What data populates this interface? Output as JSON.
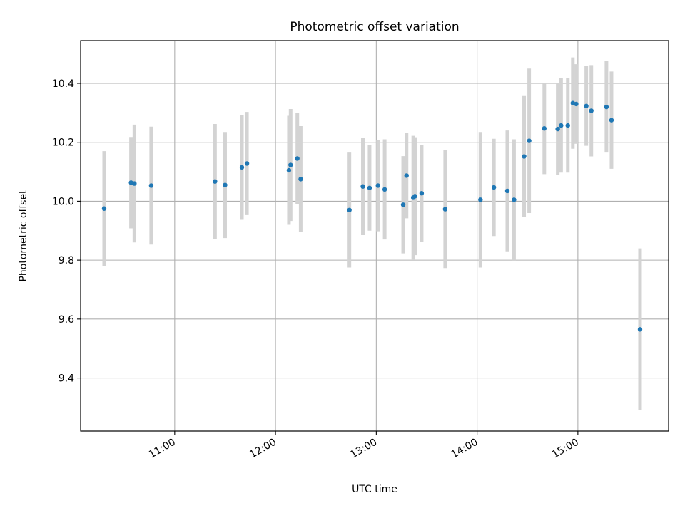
{
  "chart_data": {
    "type": "scatter",
    "title": "Photometric offset variation",
    "xlabel": "UTC time",
    "ylabel": "Photometric offset",
    "x_ticks": [
      "11:00",
      "12:00",
      "13:00",
      "14:00",
      "15:00"
    ],
    "y_ticks": [
      "9.4",
      "9.6",
      "9.8",
      "10.0",
      "10.2",
      "10.4"
    ],
    "xlim": [
      "10:04",
      "15:54"
    ],
    "ylim": [
      9.22,
      10.545
    ],
    "grid": true,
    "colors": {
      "point": "#1f77b4",
      "errorbar": "#d3d3d3"
    },
    "series": [
      {
        "points": [
          {
            "t": "10:18",
            "y": 9.975,
            "err": 0.195
          },
          {
            "t": "10:34",
            "y": 10.063,
            "err": 0.155
          },
          {
            "t": "10:36",
            "y": 10.06,
            "err": 0.2
          },
          {
            "t": "10:46",
            "y": 10.053,
            "err": 0.2
          },
          {
            "t": "11:24",
            "y": 10.067,
            "err": 0.195
          },
          {
            "t": "11:30",
            "y": 10.055,
            "err": 0.18
          },
          {
            "t": "11:40",
            "y": 10.115,
            "err": 0.178
          },
          {
            "t": "11:43",
            "y": 10.128,
            "err": 0.175
          },
          {
            "t": "12:08",
            "y": 10.105,
            "err": 0.185
          },
          {
            "t": "12:09",
            "y": 10.123,
            "err": 0.19
          },
          {
            "t": "12:13",
            "y": 10.145,
            "err": 0.155
          },
          {
            "t": "12:15",
            "y": 10.075,
            "err": 0.18
          },
          {
            "t": "12:44",
            "y": 9.97,
            "err": 0.195
          },
          {
            "t": "12:52",
            "y": 10.05,
            "err": 0.165
          },
          {
            "t": "12:56",
            "y": 10.045,
            "err": 0.145
          },
          {
            "t": "13:01",
            "y": 10.053,
            "err": 0.155
          },
          {
            "t": "13:05",
            "y": 10.04,
            "err": 0.17
          },
          {
            "t": "13:16",
            "y": 9.988,
            "err": 0.165
          },
          {
            "t": "13:18",
            "y": 10.087,
            "err": 0.145
          },
          {
            "t": "13:22",
            "y": 10.012,
            "err": 0.21
          },
          {
            "t": "13:23",
            "y": 10.017,
            "err": 0.2
          },
          {
            "t": "13:27",
            "y": 10.027,
            "err": 0.165
          },
          {
            "t": "13:41",
            "y": 9.973,
            "err": 0.2
          },
          {
            "t": "14:02",
            "y": 10.005,
            "err": 0.23
          },
          {
            "t": "14:10",
            "y": 10.047,
            "err": 0.165
          },
          {
            "t": "14:18",
            "y": 10.035,
            "err": 0.205
          },
          {
            "t": "14:22",
            "y": 10.005,
            "err": 0.205
          },
          {
            "t": "14:28",
            "y": 10.152,
            "err": 0.205
          },
          {
            "t": "14:31",
            "y": 10.205,
            "err": 0.245
          },
          {
            "t": "14:40",
            "y": 10.247,
            "err": 0.155
          },
          {
            "t": "14:48",
            "y": 10.245,
            "err": 0.155
          },
          {
            "t": "14:50",
            "y": 10.257,
            "err": 0.16
          },
          {
            "t": "14:54",
            "y": 10.257,
            "err": 0.16
          },
          {
            "t": "14:57",
            "y": 10.333,
            "err": 0.155
          },
          {
            "t": "14:59",
            "y": 10.33,
            "err": 0.135
          },
          {
            "t": "15:05",
            "y": 10.323,
            "err": 0.135
          },
          {
            "t": "15:08",
            "y": 10.307,
            "err": 0.155
          },
          {
            "t": "15:17",
            "y": 10.32,
            "err": 0.155
          },
          {
            "t": "15:20",
            "y": 10.275,
            "err": 0.165
          },
          {
            "t": "15:37",
            "y": 9.565,
            "err": 0.275
          }
        ]
      }
    ]
  }
}
